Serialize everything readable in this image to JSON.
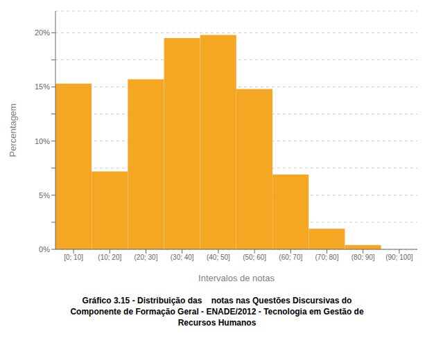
{
  "chart_data": {
    "type": "bar",
    "title": "Gráfico 3.15 - Distribuição das    notas nas Questões Discursivas do\nComponente de Formação Geral - ENADE/2012 - Tecnologia em Gestão de\nRecursos Humanos",
    "xlabel": "Intervalos de notas",
    "ylabel": "Percentagem",
    "categories": [
      "[0; 10]",
      "(10; 20]",
      "(20; 30]",
      "(30; 40]",
      "(40; 50]",
      "(50; 60]",
      "(60; 70]",
      "(70; 80]",
      "(80; 90]",
      "(90; 100]"
    ],
    "values": [
      15.3,
      7.2,
      15.7,
      19.5,
      19.8,
      14.8,
      6.9,
      1.9,
      0.4,
      0.0
    ],
    "color": "#F5A623",
    "ylim": [
      0,
      22
    ],
    "yticks": [
      {
        "value": 0,
        "label": "0%"
      },
      {
        "value": 2.5,
        "label": ""
      },
      {
        "value": 5.0,
        "label": "5%"
      },
      {
        "value": 7.5,
        "label": ""
      },
      {
        "value": 10.0,
        "label": "10%"
      },
      {
        "value": 12.5,
        "label": ""
      },
      {
        "value": 15.0,
        "label": "15%"
      },
      {
        "value": 17.5,
        "label": ""
      },
      {
        "value": 20.0,
        "label": "20%"
      }
    ],
    "grid": true
  }
}
